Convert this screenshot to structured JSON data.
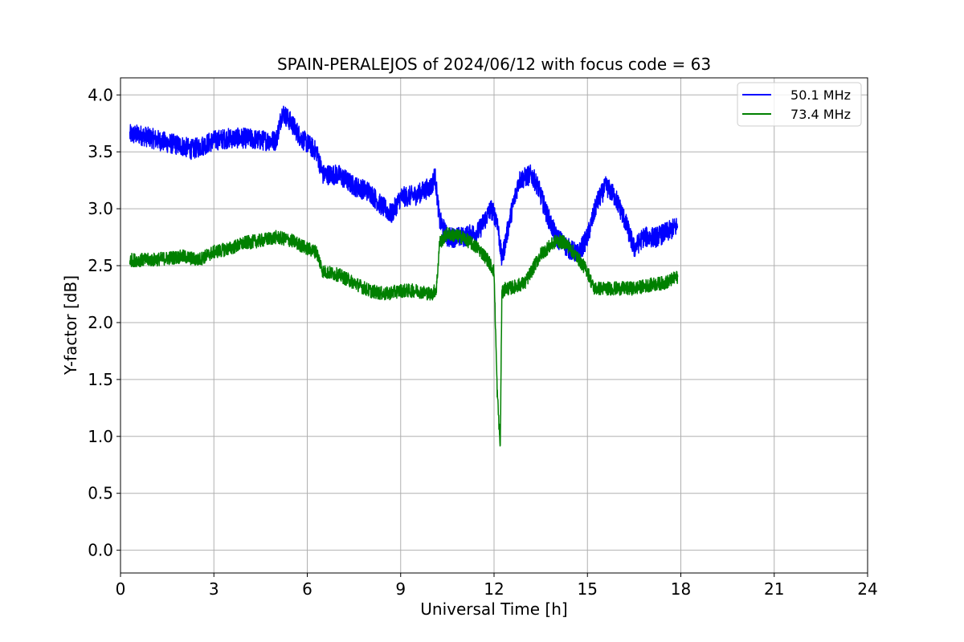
{
  "chart_data": {
    "type": "line",
    "title": "SPAIN-PERALEJOS of 2024/06/12 with focus code = 63",
    "xlabel": "Universal Time [h]",
    "ylabel": "Y-factor [dB]",
    "xlim": [
      0,
      24
    ],
    "ylim": [
      -0.2,
      4.15
    ],
    "xticks": [
      0,
      3,
      6,
      9,
      12,
      15,
      18,
      21,
      24
    ],
    "xtick_labels": [
      "0",
      "3",
      "6",
      "9",
      "12",
      "15",
      "18",
      "21",
      "24"
    ],
    "yticks": [
      0.0,
      0.5,
      1.0,
      1.5,
      2.0,
      2.5,
      3.0,
      3.5,
      4.0
    ],
    "ytick_labels": [
      "0.0",
      "0.5",
      "1.0",
      "1.5",
      "2.0",
      "2.5",
      "3.0",
      "3.5",
      "4.0"
    ],
    "grid": true,
    "legend_position": "top-right",
    "series": [
      {
        "name": "50.1 MHz",
        "color": "#0000ff",
        "x": [
          0.3,
          0.6,
          1.0,
          1.5,
          2.0,
          2.3,
          2.6,
          3.0,
          3.5,
          4.0,
          4.5,
          5.0,
          5.2,
          5.5,
          5.8,
          6.1,
          6.3,
          6.5,
          7.0,
          7.5,
          8.0,
          8.3,
          8.7,
          9.0,
          9.5,
          10.0,
          10.1,
          10.25,
          10.5,
          11.0,
          11.5,
          11.9,
          12.1,
          12.25,
          12.5,
          12.8,
          13.2,
          13.4,
          13.7,
          14.0,
          14.4,
          14.7,
          15.0,
          15.3,
          15.6,
          15.9,
          16.2,
          16.5,
          16.8,
          17.2,
          17.6,
          17.9
        ],
        "y": [
          3.65,
          3.65,
          3.62,
          3.58,
          3.55,
          3.52,
          3.55,
          3.6,
          3.62,
          3.62,
          3.6,
          3.6,
          3.85,
          3.75,
          3.62,
          3.55,
          3.5,
          3.3,
          3.3,
          3.2,
          3.15,
          3.05,
          2.95,
          3.1,
          3.12,
          3.2,
          3.3,
          2.9,
          2.75,
          2.75,
          2.8,
          3.0,
          2.9,
          2.55,
          2.9,
          3.25,
          3.3,
          3.2,
          2.95,
          2.75,
          2.65,
          2.6,
          2.75,
          3.05,
          3.2,
          3.1,
          2.9,
          2.65,
          2.75,
          2.75,
          2.8,
          2.85
        ]
      },
      {
        "name": "73.4 MHz",
        "color": "#008000",
        "x": [
          0.3,
          1.0,
          2.0,
          2.5,
          3.0,
          3.5,
          4.0,
          4.5,
          5.0,
          5.5,
          6.0,
          6.3,
          6.5,
          7.0,
          7.5,
          8.0,
          8.5,
          9.0,
          9.5,
          10.0,
          10.15,
          10.25,
          10.5,
          11.0,
          11.5,
          11.8,
          12.0,
          12.1,
          12.2,
          12.25,
          12.35,
          12.5,
          13.0,
          13.5,
          14.0,
          14.3,
          14.6,
          15.0,
          15.2,
          15.5,
          16.0,
          16.5,
          17.0,
          17.5,
          17.9
        ],
        "y": [
          2.55,
          2.55,
          2.58,
          2.55,
          2.62,
          2.65,
          2.7,
          2.72,
          2.75,
          2.72,
          2.65,
          2.62,
          2.45,
          2.42,
          2.35,
          2.28,
          2.25,
          2.28,
          2.28,
          2.25,
          2.3,
          2.7,
          2.78,
          2.75,
          2.65,
          2.55,
          2.45,
          1.4,
          0.9,
          2.25,
          2.3,
          2.3,
          2.35,
          2.6,
          2.72,
          2.7,
          2.6,
          2.45,
          2.3,
          2.3,
          2.3,
          2.3,
          2.33,
          2.35,
          2.4
        ]
      }
    ]
  }
}
